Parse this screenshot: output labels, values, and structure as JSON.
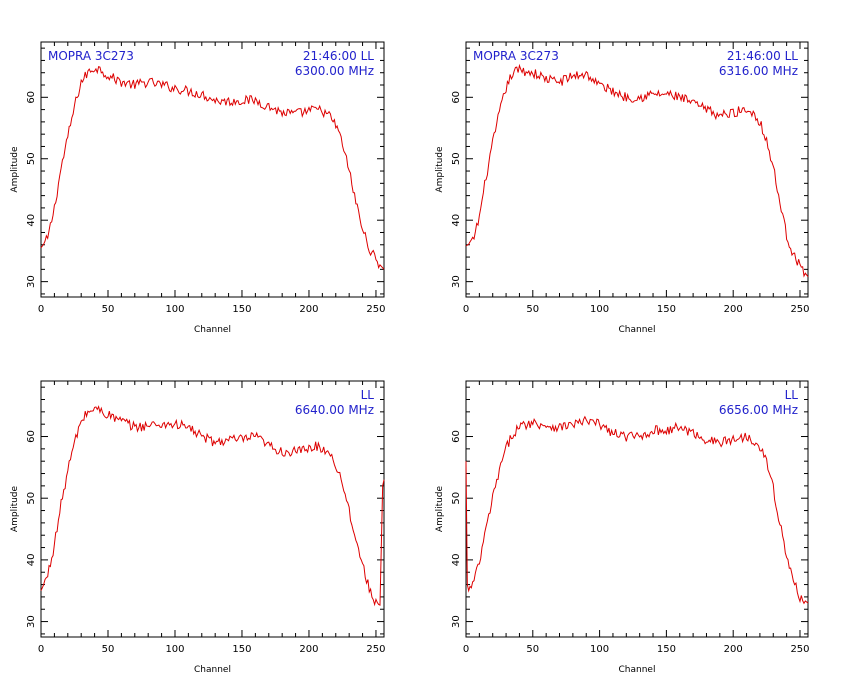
{
  "colors": {
    "trace": "#dd0000",
    "annotation": "#2222cc",
    "axes": "#000000",
    "background": "#ffffff"
  },
  "chart_data": [
    {
      "type": "line",
      "xlabel": "Channel",
      "ylabel": "Amplitude",
      "xlim": [
        0,
        256
      ],
      "ylim": [
        27.5,
        69
      ],
      "xticks": [
        0,
        50,
        100,
        150,
        200,
        250
      ],
      "yticks": [
        30,
        40,
        50,
        60
      ],
      "grid": false,
      "annotation_left": "MOPRA 3C273",
      "annotation_right_1": "21:46:00  LL",
      "annotation_right_2": "6300.00  MHz",
      "series": [
        {
          "x": [
            0,
            5,
            10,
            15,
            20,
            25,
            30,
            35,
            40,
            45,
            50,
            60,
            70,
            80,
            90,
            100,
            110,
            120,
            130,
            140,
            150,
            160,
            170,
            180,
            190,
            200,
            205,
            210,
            215,
            220,
            225,
            230,
            235,
            240,
            245,
            250,
            256
          ],
          "values": [
            35.5,
            37.0,
            42.0,
            48.5,
            53.5,
            58.5,
            62.5,
            64.0,
            64.8,
            64.5,
            63.5,
            62.5,
            62.0,
            62.5,
            62.0,
            61.5,
            61.0,
            60.5,
            59.5,
            59.3,
            59.5,
            59.5,
            58.5,
            57.5,
            57.3,
            57.8,
            58.0,
            57.8,
            57.0,
            55.5,
            52.5,
            48.0,
            43.0,
            38.5,
            35.5,
            33.5,
            32.0
          ]
        }
      ]
    },
    {
      "type": "line",
      "xlabel": "Channel",
      "ylabel": "Amplitude",
      "xlim": [
        0,
        256
      ],
      "ylim": [
        27.5,
        69
      ],
      "xticks": [
        0,
        50,
        100,
        150,
        200,
        250
      ],
      "yticks": [
        30,
        40,
        50,
        60
      ],
      "grid": false,
      "annotation_left": "MOPRA 3C273",
      "annotation_right_1": "21:46:00  LL",
      "annotation_right_2": "6316.00  MHz",
      "series": [
        {
          "x": [
            0,
            5,
            10,
            15,
            20,
            25,
            30,
            35,
            40,
            45,
            50,
            60,
            70,
            80,
            90,
            100,
            110,
            120,
            130,
            140,
            150,
            160,
            170,
            180,
            190,
            200,
            205,
            210,
            215,
            220,
            225,
            230,
            235,
            240,
            245,
            250,
            256
          ],
          "values": [
            35.8,
            36.5,
            40.5,
            47.0,
            52.5,
            57.5,
            61.5,
            64.0,
            64.5,
            64.2,
            64.0,
            63.0,
            62.5,
            63.5,
            63.8,
            62.0,
            61.0,
            60.0,
            60.0,
            60.5,
            60.5,
            60.0,
            59.0,
            58.0,
            57.0,
            57.5,
            57.8,
            58.0,
            57.5,
            56.0,
            53.0,
            48.5,
            43.0,
            37.5,
            34.5,
            32.5,
            30.8
          ]
        }
      ]
    },
    {
      "type": "line",
      "xlabel": "Channel",
      "ylabel": "Amplitude",
      "xlim": [
        0,
        256
      ],
      "ylim": [
        27.5,
        69
      ],
      "xticks": [
        0,
        50,
        100,
        150,
        200,
        250
      ],
      "yticks": [
        30,
        40,
        50,
        60
      ],
      "grid": false,
      "annotation_left": "",
      "annotation_right_1": "LL",
      "annotation_right_2": "6640.00  MHz",
      "series": [
        {
          "x": [
            0,
            5,
            10,
            15,
            20,
            25,
            30,
            35,
            40,
            45,
            50,
            60,
            70,
            80,
            90,
            100,
            110,
            120,
            130,
            140,
            150,
            160,
            170,
            180,
            190,
            200,
            205,
            210,
            215,
            220,
            225,
            230,
            235,
            240,
            245,
            250,
            253,
            255,
            256
          ],
          "values": [
            35.0,
            37.5,
            42.5,
            49.0,
            54.5,
            59.0,
            62.5,
            64.0,
            64.5,
            64.2,
            63.5,
            62.5,
            61.5,
            61.8,
            62.0,
            62.0,
            61.5,
            60.0,
            59.0,
            59.5,
            59.5,
            60.0,
            58.5,
            57.5,
            57.5,
            58.0,
            58.5,
            58.0,
            57.5,
            55.5,
            52.5,
            48.0,
            43.5,
            39.0,
            35.5,
            33.0,
            32.5,
            52.0,
            53.0
          ]
        }
      ]
    },
    {
      "type": "line",
      "xlabel": "Channel",
      "ylabel": "Amplitude",
      "xlim": [
        0,
        256
      ],
      "ylim": [
        27.5,
        69
      ],
      "xticks": [
        0,
        50,
        100,
        150,
        200,
        250
      ],
      "yticks": [
        30,
        40,
        50,
        60
      ],
      "grid": false,
      "annotation_left": "",
      "annotation_right_1": "LL",
      "annotation_right_2": "6656.00  MHz",
      "series": [
        {
          "x": [
            0,
            1,
            2,
            5,
            10,
            15,
            20,
            25,
            30,
            35,
            40,
            45,
            50,
            60,
            70,
            80,
            90,
            100,
            110,
            120,
            130,
            140,
            150,
            160,
            170,
            180,
            190,
            200,
            205,
            210,
            215,
            220,
            225,
            230,
            235,
            240,
            245,
            250,
            256
          ],
          "values": [
            56.0,
            36.0,
            35.0,
            36.0,
            39.5,
            45.0,
            50.0,
            54.5,
            58.0,
            60.5,
            61.5,
            62.0,
            62.3,
            61.8,
            61.5,
            62.0,
            62.5,
            62.0,
            60.5,
            60.0,
            60.0,
            61.0,
            61.0,
            61.5,
            60.5,
            59.5,
            59.0,
            59.5,
            59.8,
            60.0,
            59.5,
            58.5,
            56.0,
            51.5,
            46.0,
            40.5,
            36.5,
            34.0,
            33.0
          ]
        }
      ]
    }
  ]
}
